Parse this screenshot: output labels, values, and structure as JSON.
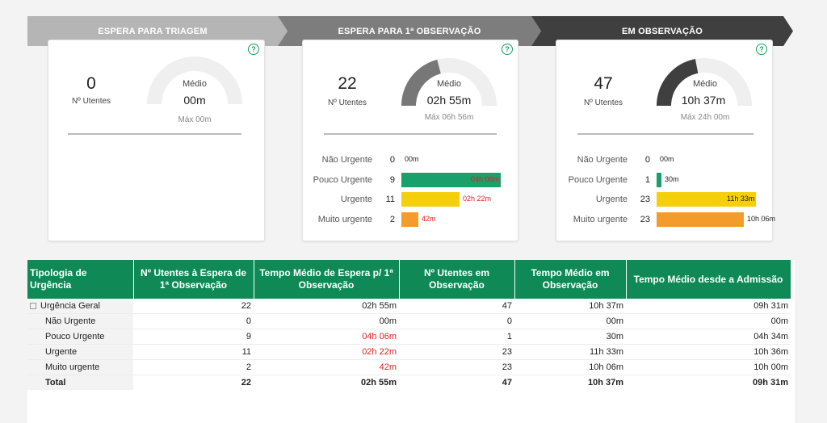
{
  "stages": [
    {
      "label": "ESPERA PARA TRIAGEM"
    },
    {
      "label": "ESPERA PARA 1ª OBSERVAÇÃO"
    },
    {
      "label": "EM OBSERVAÇÃO"
    }
  ],
  "cards": [
    {
      "count": "0",
      "count_label": "Nº Utentes",
      "gauge_label": "Médio",
      "gauge_value": "00m",
      "gauge_max": "Máx 00m",
      "gauge_fraction": 0.0
    },
    {
      "count": "22",
      "count_label": "Nº Utentes",
      "gauge_label": "Médio",
      "gauge_value": "02h 55m",
      "gauge_max": "Máx 06h 56m",
      "gauge_fraction": 0.42,
      "bars": [
        {
          "name": "Não Urgente",
          "count": "0",
          "value": "00m",
          "fraction": 0.0,
          "color": "#1aa06a",
          "value_color": "#222"
        },
        {
          "name": "Pouco Urgente",
          "count": "9",
          "value": "04h 06m",
          "fraction": 0.82,
          "color": "#1aa06a",
          "value_color": "#d22"
        },
        {
          "name": "Urgente",
          "count": "11",
          "value": "02h 22m",
          "fraction": 0.48,
          "color": "#f5cf0c",
          "value_color": "#d22"
        },
        {
          "name": "Muito urgente",
          "count": "2",
          "value": "42m",
          "fraction": 0.14,
          "color": "#f39c2b",
          "value_color": "#d22"
        }
      ]
    },
    {
      "count": "47",
      "count_label": "Nº Utentes",
      "gauge_label": "Médio",
      "gauge_value": "10h 37m",
      "gauge_max": "Máx 24h 00m",
      "gauge_fraction": 0.44,
      "bars": [
        {
          "name": "Não Urgente",
          "count": "0",
          "value": "00m",
          "fraction": 0.0,
          "color": "#1aa06a",
          "value_color": "#222"
        },
        {
          "name": "Pouco Urgente",
          "count": "1",
          "value": "30m",
          "fraction": 0.04,
          "color": "#1aa06a",
          "value_color": "#222"
        },
        {
          "name": "Urgente",
          "count": "23",
          "value": "11h 33m",
          "fraction": 0.82,
          "color": "#f5cf0c",
          "value_color": "#222"
        },
        {
          "name": "Muito urgente",
          "count": "23",
          "value": "10h 06m",
          "fraction": 0.72,
          "color": "#f39c2b",
          "value_color": "#222"
        }
      ]
    }
  ],
  "table": {
    "headers": [
      "Tipologia de Urgência",
      "Nº Utentes à Espera de 1ª Observação",
      "Tempo Médio de Espera p/ 1ª Observação",
      "Nº Utentes em Observação",
      "Tempo Médio em Observação",
      "Tempo Médio desde a Admissão"
    ],
    "rows": [
      {
        "name": "Urgência Geral",
        "c1": "22",
        "c2": "02h 55m",
        "c3": "47",
        "c4": "10h 37m",
        "c5": "09h 31m"
      },
      {
        "name": "Não Urgente",
        "c1": "0",
        "c2": "00m",
        "c3": "0",
        "c4": "00m",
        "c5": "00m"
      },
      {
        "name": "Pouco Urgente",
        "c1": "9",
        "c2": "04h 06m",
        "c3": "1",
        "c4": "30m",
        "c5": "04h 34m"
      },
      {
        "name": "Urgente",
        "c1": "11",
        "c2": "02h 22m",
        "c3": "23",
        "c4": "11h 33m",
        "c5": "10h 36m"
      },
      {
        "name": "Muito urgente",
        "c1": "2",
        "c2": "42m",
        "c3": "23",
        "c4": "10h 06m",
        "c5": "10h 00m"
      },
      {
        "name": "Total",
        "c1": "22",
        "c2": "02h 55m",
        "c3": "47",
        "c4": "10h 37m",
        "c5": "09h 31m"
      }
    ]
  },
  "colors": {
    "header_green": "#0f8a57",
    "alert_red": "#d22"
  }
}
